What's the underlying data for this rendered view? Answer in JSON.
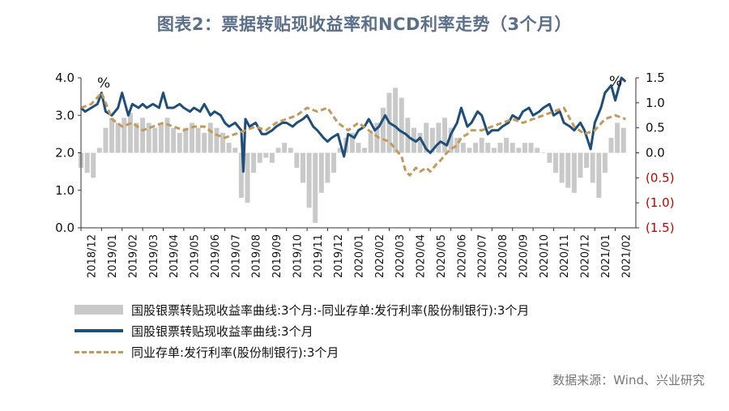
{
  "title": "图表2：票据转贴现收益率和NCD利率走势（3个月）",
  "source": "数据来源：Wind、兴业研究",
  "chart_data": {
    "type": "line",
    "unit_left": "%",
    "unit_right": "%",
    "y_left": {
      "ylim": [
        0,
        4
      ],
      "ticks": [
        "0.0",
        "1.0",
        "2.0",
        "3.0",
        "4.0"
      ]
    },
    "y_right": {
      "ylim": [
        -1.5,
        1.5
      ],
      "ticks": [
        "(1.5)",
        "(1.0)",
        "(0.5)",
        "0.0",
        "0.5",
        "1.0",
        "1.5"
      ],
      "negative_color": "#c00000"
    },
    "x_labels": [
      "2018/12",
      "2019/01",
      "2019/02",
      "2019/03",
      "2019/04",
      "2019/05",
      "2019/06",
      "2019/07",
      "2019/08",
      "2019/09",
      "2019/10",
      "2019/11",
      "2019/12",
      "2020/01",
      "2020/02",
      "2020/03",
      "2020/04",
      "2020/05",
      "2020/06",
      "2020/07",
      "2020/08",
      "2020/09",
      "2020/10",
      "2020/11",
      "2020/12",
      "2021/01",
      "2021/02"
    ],
    "series": [
      {
        "name": "国股银票转贴现收益率曲线:3个月:-同业存单:发行利率(股份制银行):3个月",
        "type": "bar",
        "axis": "right",
        "color": "#c9c9c9",
        "x": [
          0,
          0.3,
          0.6,
          0.9,
          1.2,
          1.5,
          1.8,
          2.1,
          2.4,
          2.7,
          3,
          3.3,
          3.6,
          3.9,
          4.2,
          4.5,
          4.8,
          5.1,
          5.4,
          5.7,
          6,
          6.3,
          6.6,
          6.9,
          7.2,
          7.5,
          7.8,
          8.1,
          8.4,
          8.7,
          9,
          9.3,
          9.6,
          9.9,
          10.2,
          10.5,
          10.8,
          11.1,
          11.4,
          11.7,
          12,
          12.3,
          12.6,
          12.9,
          13.2,
          13.5,
          13.8,
          14.1,
          14.4,
          14.7,
          15,
          15.3,
          15.6,
          15.9,
          16.2,
          16.5,
          16.8,
          17.1,
          17.4,
          17.7,
          18,
          18.3,
          18.6,
          18.9,
          19.2,
          19.5,
          19.8,
          20.1,
          20.4,
          20.7,
          21,
          21.3,
          21.6,
          21.9,
          22.2,
          22.5,
          22.8,
          23.1,
          23.4,
          23.7,
          24,
          24.3,
          24.6,
          24.9,
          25.2,
          25.5,
          25.8,
          26.1,
          26.4
        ],
        "values": [
          -0.3,
          -0.4,
          -0.5,
          0.1,
          0.5,
          0.7,
          0.6,
          0.7,
          0.8,
          0.6,
          0.7,
          0.6,
          0.5,
          0.6,
          0.7,
          0.5,
          0.4,
          0.5,
          0.6,
          0.5,
          0.4,
          0.6,
          0.5,
          0.4,
          0.2,
          0.1,
          -0.9,
          -1.0,
          -0.4,
          -0.2,
          -0.1,
          -0.2,
          0.1,
          0.2,
          0.1,
          -0.3,
          -0.6,
          -1.1,
          -1.4,
          -0.8,
          -0.6,
          -0.4,
          0.1,
          0.3,
          0.4,
          0.2,
          0.1,
          0.4,
          0.6,
          0.9,
          1.2,
          1.3,
          1.1,
          0.7,
          0.5,
          0.4,
          0.6,
          0.5,
          0.6,
          0.7,
          0.5,
          0.3,
          0.2,
          0.1,
          0.2,
          0.3,
          0.2,
          0.1,
          0.2,
          0.3,
          0.2,
          0.1,
          0.2,
          0.2,
          0.1,
          0.0,
          -0.2,
          -0.4,
          -0.6,
          -0.7,
          -0.8,
          -0.5,
          -0.3,
          -0.6,
          -0.9,
          -0.4,
          0.3,
          0.6,
          0.5
        ]
      },
      {
        "name": "国股银票转贴现收益率曲线:3个月",
        "type": "line",
        "axis": "left",
        "color": "#1f4e79",
        "x": [
          0,
          0.2,
          0.5,
          0.8,
          1.0,
          1.2,
          1.5,
          1.8,
          2.0,
          2.3,
          2.5,
          2.8,
          3.0,
          3.2,
          3.5,
          3.8,
          4.0,
          4.2,
          4.5,
          4.8,
          5.0,
          5.3,
          5.5,
          5.8,
          6.0,
          6.3,
          6.5,
          6.8,
          7.0,
          7.2,
          7.5,
          7.8,
          7.9,
          8.0,
          8.2,
          8.5,
          8.8,
          9.0,
          9.3,
          9.5,
          9.8,
          10.0,
          10.3,
          10.5,
          10.8,
          11.0,
          11.3,
          11.5,
          11.8,
          12.0,
          12.2,
          12.5,
          12.8,
          13.0,
          13.3,
          13.5,
          13.8,
          14.0,
          14.3,
          14.5,
          14.8,
          15.0,
          15.3,
          15.5,
          15.8,
          16.0,
          16.3,
          16.5,
          16.8,
          17.0,
          17.3,
          17.5,
          17.8,
          18.0,
          18.3,
          18.5,
          18.8,
          19.0,
          19.3,
          19.5,
          19.8,
          20.0,
          20.3,
          20.5,
          20.8,
          21.0,
          21.3,
          21.5,
          21.8,
          22.0,
          22.3,
          22.5,
          22.8,
          23.0,
          23.3,
          23.5,
          23.8,
          24.0,
          24.3,
          24.5,
          24.8,
          25.0,
          25.3,
          25.5,
          25.8,
          26.0,
          26.3,
          26.5
        ],
        "values": [
          3.2,
          3.1,
          3.2,
          3.3,
          3.6,
          3.1,
          3.0,
          3.2,
          3.6,
          3.0,
          3.3,
          3.2,
          3.3,
          3.2,
          3.3,
          3.2,
          3.6,
          3.2,
          3.2,
          3.3,
          3.2,
          3.1,
          3.2,
          3.1,
          3.3,
          3.0,
          3.1,
          3.0,
          2.8,
          2.7,
          2.8,
          2.6,
          1.5,
          2.9,
          2.7,
          2.8,
          2.5,
          2.5,
          2.6,
          2.7,
          2.8,
          2.8,
          2.7,
          2.8,
          2.9,
          3.0,
          2.7,
          2.6,
          2.4,
          2.3,
          2.4,
          2.5,
          1.9,
          2.5,
          2.4,
          2.6,
          2.7,
          2.9,
          2.6,
          2.7,
          3.0,
          2.8,
          2.7,
          2.6,
          2.5,
          2.4,
          2.3,
          2.4,
          2.1,
          2.0,
          2.2,
          2.3,
          2.2,
          2.5,
          2.8,
          3.2,
          2.7,
          2.8,
          3.1,
          3.0,
          2.5,
          2.6,
          2.6,
          2.7,
          2.8,
          3.0,
          2.9,
          3.1,
          3.2,
          3.0,
          3.1,
          3.2,
          3.3,
          3.0,
          3.1,
          2.8,
          2.7,
          2.6,
          2.8,
          2.6,
          2.1,
          2.8,
          3.2,
          3.6,
          3.8,
          3.4,
          4.0,
          3.9
        ]
      },
      {
        "name": "同业存单:发行利率(股份制银行):3个月",
        "type": "line",
        "axis": "left",
        "color": "#c29a5a",
        "dashed": true,
        "x": [
          0,
          0.5,
          1.0,
          1.3,
          1.5,
          2.0,
          2.5,
          3.0,
          3.5,
          4.0,
          4.5,
          5.0,
          5.5,
          6.0,
          6.5,
          7.0,
          7.5,
          8.0,
          8.5,
          9.0,
          9.5,
          10.0,
          10.5,
          11.0,
          11.5,
          12.0,
          12.5,
          13.0,
          13.5,
          14.0,
          14.5,
          15.0,
          15.3,
          15.6,
          15.8,
          16.0,
          16.3,
          16.5,
          16.8,
          17.0,
          17.3,
          17.5,
          17.8,
          18.0,
          18.3,
          18.5,
          18.8,
          19.0,
          19.5,
          20.0,
          20.5,
          21.0,
          21.5,
          22.0,
          22.5,
          23.0,
          23.5,
          24.0,
          24.5,
          25.0,
          25.5,
          26.0,
          26.5
        ],
        "values": [
          3.2,
          3.3,
          3.6,
          3.2,
          2.9,
          2.7,
          2.8,
          2.6,
          2.7,
          2.8,
          2.7,
          2.6,
          2.7,
          2.7,
          2.5,
          2.4,
          2.5,
          2.6,
          2.7,
          2.6,
          2.8,
          2.9,
          3.0,
          3.2,
          3.1,
          3.2,
          2.8,
          2.6,
          2.8,
          2.6,
          2.4,
          2.3,
          2.1,
          1.9,
          1.5,
          1.4,
          1.6,
          1.5,
          1.6,
          1.5,
          1.7,
          1.8,
          2.0,
          2.1,
          2.2,
          2.4,
          2.5,
          2.6,
          2.6,
          2.7,
          2.8,
          2.9,
          2.8,
          2.9,
          3.0,
          3.1,
          3.2,
          2.7,
          2.5,
          2.6,
          2.9,
          3.0,
          2.9
        ]
      }
    ]
  }
}
